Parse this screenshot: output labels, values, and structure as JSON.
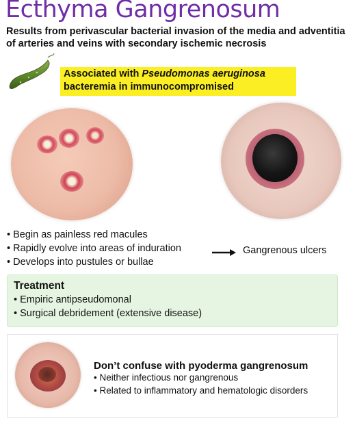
{
  "title": "Ecthyma Gangrenosum",
  "subtitle": "Results from perivascular bacterial invasion of the media and adventitia of arteries and veins with secondary ischemic necrosis",
  "highlight": {
    "prefix": "Associated with ",
    "organism": "Pseudomonas aeruginosa",
    "line2": "bacteremia in immunocompromised"
  },
  "progression": {
    "items": [
      "Begin as painless red macules",
      "Rapidly evolve into areas of induration",
      "Develops into pustules or bullae"
    ],
    "result": "Gangrenous ulcers"
  },
  "treatment": {
    "heading": "Treatment",
    "items": [
      "Empiric antipseudomonal",
      "Surgical debridement (extensive disease)"
    ]
  },
  "differential": {
    "heading": "Don’t confuse with pyoderma gangrenosum",
    "items": [
      "Neither infectious nor gangrenous",
      "Related to inflammatory and hematologic disorders"
    ]
  },
  "colors": {
    "title": "#6f2da8",
    "highlight": "#fbee23",
    "treatment_bg": "#e6f5e2"
  },
  "icons": [
    "bacterium-icon",
    "right-arrow-icon"
  ]
}
